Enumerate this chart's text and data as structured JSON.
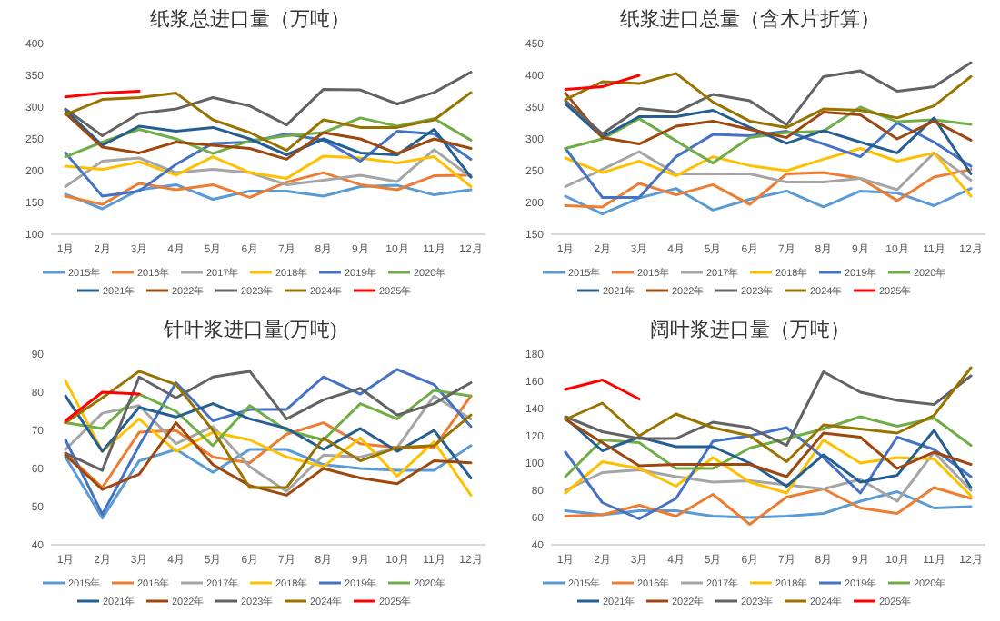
{
  "chart_data": [
    {
      "type": "line",
      "title": "纸浆总进口量（万吨）",
      "categories": [
        "1月",
        "2月",
        "3月",
        "4月",
        "5月",
        "6月",
        "7月",
        "8月",
        "9月",
        "10月",
        "11月",
        "12月"
      ],
      "ylim": [
        100,
        400
      ],
      "yticks": [
        100,
        150,
        200,
        250,
        300,
        350,
        400
      ],
      "legend": "bottom",
      "series": [
        {
          "name": "2015年",
          "color": "#5b9bd5",
          "values": [
            163,
            140,
            170,
            178,
            155,
            168,
            168,
            160,
            175,
            177,
            162,
            170
          ]
        },
        {
          "name": "2016年",
          "color": "#ed7d31",
          "values": [
            160,
            147,
            180,
            170,
            178,
            158,
            182,
            197,
            178,
            170,
            192,
            193
          ]
        },
        {
          "name": "2017年",
          "color": "#a5a5a5",
          "values": [
            175,
            215,
            220,
            197,
            202,
            197,
            178,
            185,
            193,
            183,
            233,
            190
          ]
        },
        {
          "name": "2018年",
          "color": "#ffc000",
          "values": [
            207,
            202,
            214,
            193,
            222,
            197,
            188,
            223,
            220,
            212,
            222,
            175
          ]
        },
        {
          "name": "2019年",
          "color": "#4472c4",
          "values": [
            228,
            160,
            168,
            210,
            243,
            245,
            258,
            248,
            215,
            262,
            258,
            218
          ]
        },
        {
          "name": "2020年",
          "color": "#70ad47",
          "values": [
            222,
            245,
            265,
            250,
            227,
            247,
            255,
            260,
            283,
            270,
            282,
            248
          ]
        },
        {
          "name": "2021年",
          "color": "#255e91",
          "values": [
            295,
            240,
            270,
            262,
            268,
            250,
            225,
            250,
            228,
            225,
            265,
            190
          ]
        },
        {
          "name": "2022年",
          "color": "#9e480e",
          "values": [
            290,
            237,
            228,
            245,
            240,
            235,
            218,
            260,
            250,
            227,
            250,
            235
          ]
        },
        {
          "name": "2023年",
          "color": "#636363",
          "values": [
            297,
            255,
            290,
            297,
            315,
            302,
            272,
            328,
            327,
            305,
            323,
            355
          ]
        },
        {
          "name": "2024年",
          "color": "#997300",
          "values": [
            288,
            312,
            315,
            322,
            280,
            260,
            232,
            280,
            268,
            268,
            280,
            323
          ]
        },
        {
          "name": "2025年",
          "color": "#ff0000",
          "values": [
            316,
            322,
            325,
            null,
            null,
            null,
            null,
            null,
            null,
            null,
            null,
            null
          ]
        }
      ]
    },
    {
      "type": "line",
      "title": "纸浆进口总量（含木片折算）",
      "categories": [
        "1月",
        "2月",
        "3月",
        "4月",
        "5月",
        "6月",
        "7月",
        "8月",
        "9月",
        "10月",
        "11月",
        "12月"
      ],
      "ylim": [
        150,
        450
      ],
      "yticks": [
        150,
        200,
        250,
        300,
        350,
        400,
        450
      ],
      "legend": "bottom",
      "series": [
        {
          "name": "2015年",
          "color": "#5b9bd5",
          "values": [
            210,
            182,
            207,
            222,
            188,
            205,
            218,
            193,
            218,
            215,
            195,
            222
          ]
        },
        {
          "name": "2016年",
          "color": "#ed7d31",
          "values": [
            195,
            193,
            230,
            212,
            228,
            197,
            245,
            247,
            238,
            203,
            240,
            252
          ]
        },
        {
          "name": "2017年",
          "color": "#a5a5a5",
          "values": [
            225,
            252,
            280,
            245,
            245,
            245,
            232,
            232,
            238,
            220,
            278,
            235
          ]
        },
        {
          "name": "2018年",
          "color": "#ffc000",
          "values": [
            270,
            247,
            265,
            242,
            272,
            258,
            250,
            268,
            285,
            265,
            278,
            210
          ]
        },
        {
          "name": "2019年",
          "color": "#4472c4",
          "values": [
            285,
            208,
            208,
            272,
            307,
            305,
            312,
            292,
            272,
            325,
            295,
            257
          ]
        },
        {
          "name": "2020年",
          "color": "#70ad47",
          "values": [
            285,
            300,
            332,
            297,
            262,
            302,
            310,
            312,
            350,
            327,
            330,
            323
          ]
        },
        {
          "name": "2021年",
          "color": "#255e91",
          "values": [
            355,
            303,
            335,
            335,
            345,
            318,
            293,
            313,
            295,
            278,
            333,
            245
          ]
        },
        {
          "name": "2022年",
          "color": "#9e480e",
          "values": [
            372,
            302,
            292,
            320,
            328,
            315,
            302,
            342,
            338,
            300,
            328,
            298
          ]
        },
        {
          "name": "2023年",
          "color": "#636363",
          "values": [
            360,
            308,
            348,
            342,
            370,
            360,
            322,
            398,
            407,
            375,
            382,
            420
          ]
        },
        {
          "name": "2024年",
          "color": "#997300",
          "values": [
            362,
            390,
            387,
            403,
            358,
            328,
            318,
            347,
            345,
            333,
            352,
            398
          ]
        },
        {
          "name": "2025年",
          "color": "#ff0000",
          "values": [
            378,
            382,
            400,
            null,
            null,
            null,
            null,
            null,
            null,
            null,
            null,
            null
          ]
        }
      ]
    },
    {
      "type": "line",
      "title": "针叶浆进口量(万吨)",
      "categories": [
        "1月",
        "2月",
        "3月",
        "4月",
        "5月",
        "6月",
        "7月",
        "8月",
        "9月",
        "10月",
        "11月",
        "12月"
      ],
      "ylim": [
        40,
        90
      ],
      "yticks": [
        40,
        50,
        60,
        70,
        80,
        90
      ],
      "legend": "bottom",
      "series": [
        {
          "name": "2015年",
          "color": "#5b9bd5",
          "values": [
            63,
            47,
            62,
            65,
            59,
            65,
            65,
            61,
            60,
            59.5,
            59.5,
            66
          ]
        },
        {
          "name": "2016年",
          "color": "#ed7d31",
          "values": [
            64,
            55,
            69.5,
            70,
            63,
            61.5,
            69,
            72,
            66.5,
            65.5,
            65.5,
            79
          ]
        },
        {
          "name": "2017年",
          "color": "#a5a5a5",
          "values": [
            65,
            74.5,
            76.5,
            66.5,
            71,
            60.5,
            54,
            63.5,
            63,
            65.5,
            79,
            73
          ]
        },
        {
          "name": "2018年",
          "color": "#ffc000",
          "values": [
            83,
            64.5,
            73,
            64.5,
            69.5,
            67.5,
            63,
            60.5,
            68,
            58,
            67,
            53
          ]
        },
        {
          "name": "2019年",
          "color": "#4472c4",
          "values": [
            67.5,
            48,
            66,
            82.5,
            72.5,
            75.5,
            75.5,
            84,
            79.5,
            86,
            82,
            71
          ]
        },
        {
          "name": "2020年",
          "color": "#70ad47",
          "values": [
            72,
            70.5,
            79.5,
            75,
            66,
            76.5,
            70,
            67.5,
            77,
            73,
            80.5,
            79
          ]
        },
        {
          "name": "2021年",
          "color": "#255e91",
          "values": [
            79,
            64.5,
            76,
            73.5,
            77,
            73,
            70.5,
            65,
            70.5,
            64.5,
            70,
            57.5
          ]
        },
        {
          "name": "2022年",
          "color": "#9e480e",
          "values": [
            63.5,
            54.5,
            58.5,
            72,
            61,
            55.5,
            53,
            60,
            57.5,
            56,
            62,
            61.5
          ]
        },
        {
          "name": "2023年",
          "color": "#636363",
          "values": [
            64,
            59.5,
            84,
            78.5,
            84,
            85.5,
            73,
            78,
            81,
            74,
            77,
            82.5
          ]
        },
        {
          "name": "2024年",
          "color": "#997300",
          "values": [
            72,
            78.5,
            85.5,
            82,
            70,
            55,
            55,
            68,
            62,
            65.5,
            66,
            74
          ]
        },
        {
          "name": "2025年",
          "color": "#ff0000",
          "values": [
            72.5,
            80,
            79.5,
            null,
            null,
            null,
            null,
            null,
            null,
            null,
            null,
            null
          ]
        }
      ]
    },
    {
      "type": "line",
      "title": "阔叶浆进口量（万吨）",
      "categories": [
        "1月",
        "2月",
        "3月",
        "4月",
        "5月",
        "6月",
        "7月",
        "8月",
        "9月",
        "10月",
        "11月",
        "12月"
      ],
      "ylim": [
        40,
        180
      ],
      "yticks": [
        40,
        60,
        80,
        100,
        120,
        140,
        160,
        180
      ],
      "legend": "bottom",
      "series": [
        {
          "name": "2015年",
          "color": "#5b9bd5",
          "values": [
            65,
            62,
            65,
            65,
            61,
            60,
            61,
            63,
            72,
            79,
            67,
            68
          ]
        },
        {
          "name": "2016年",
          "color": "#ed7d31",
          "values": [
            61,
            62,
            69,
            61,
            77,
            55,
            75,
            81,
            67,
            63,
            82,
            74
          ]
        },
        {
          "name": "2017年",
          "color": "#a5a5a5",
          "values": [
            80,
            93,
            95,
            90,
            86,
            87,
            84,
            81,
            88,
            72,
            108,
            80
          ]
        },
        {
          "name": "2018年",
          "color": "#ffc000",
          "values": [
            78,
            101,
            96,
            83,
            104,
            86,
            78,
            117,
            100,
            104,
            103,
            76
          ]
        },
        {
          "name": "2019年",
          "color": "#4472c4",
          "values": [
            108,
            71,
            59,
            74,
            116,
            120,
            126,
            104,
            78,
            119,
            110,
            90
          ]
        },
        {
          "name": "2020年",
          "color": "#70ad47",
          "values": [
            90,
            117,
            115,
            96,
            96,
            111,
            118,
            125,
            134,
            127,
            133,
            113
          ]
        },
        {
          "name": "2021年",
          "color": "#255e91",
          "values": [
            133,
            109,
            119,
            112,
            112,
            100,
            83,
            106,
            86,
            91,
            124,
            82
          ]
        },
        {
          "name": "2022年",
          "color": "#9e480e",
          "values": [
            132,
            115,
            98,
            99,
            99,
            99,
            90,
            122,
            119,
            96,
            108,
            99
          ]
        },
        {
          "name": "2023年",
          "color": "#636363",
          "values": [
            134,
            123,
            118,
            118,
            130,
            126,
            113,
            167,
            152,
            146,
            143,
            164
          ]
        },
        {
          "name": "2024年",
          "color": "#997300",
          "values": [
            132,
            144,
            120,
            136,
            126,
            120,
            101,
            128,
            125,
            122,
            135,
            170
          ]
        },
        {
          "name": "2025年",
          "color": "#ff0000",
          "values": [
            154,
            161,
            147,
            null,
            null,
            null,
            null,
            null,
            null,
            null,
            null,
            null
          ]
        }
      ]
    }
  ]
}
